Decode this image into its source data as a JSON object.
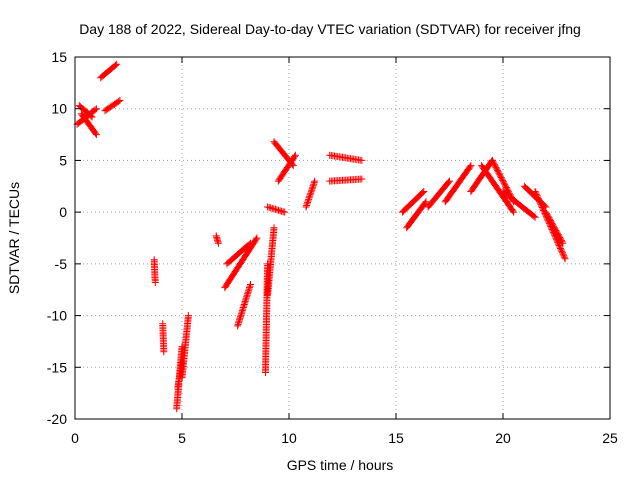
{
  "chart_data": {
    "type": "scatter",
    "title": "Day 188 of 2022, Sidereal Day-to-day VTEC variation (SDTVAR) for receiver jfng",
    "xlabel": "GPS time / hours",
    "ylabel": "SDTVAR / TECUs",
    "xlim": [
      0,
      25
    ],
    "ylim": [
      -20,
      15
    ],
    "xticks": [
      0,
      5,
      10,
      15,
      20,
      25
    ],
    "yticks": [
      -20,
      -15,
      -10,
      -5,
      0,
      5,
      10,
      15
    ],
    "grid": true,
    "marker": "+",
    "marker_color": "#ff0000",
    "series": [
      {
        "name": "sdtvar",
        "segments": [
          {
            "x0": 0.1,
            "x1": 1.0,
            "y0": 8.5,
            "y1": 10.0
          },
          {
            "x0": 0.3,
            "x1": 1.0,
            "y0": 9.5,
            "y1": 7.5
          },
          {
            "x0": 0.2,
            "x1": 0.8,
            "y0": 10.3,
            "y1": 9.2
          },
          {
            "x0": 1.2,
            "x1": 1.95,
            "y0": 13.0,
            "y1": 14.3
          },
          {
            "x0": 1.4,
            "x1": 2.1,
            "y0": 9.8,
            "y1": 10.8
          },
          {
            "x0": 3.7,
            "x1": 3.75,
            "y0": -4.6,
            "y1": -6.8
          },
          {
            "x0": 4.1,
            "x1": 4.15,
            "y0": -10.8,
            "y1": -13.5
          },
          {
            "x0": 4.75,
            "x1": 5.0,
            "y0": -19.0,
            "y1": -13.0
          },
          {
            "x0": 4.8,
            "x1": 5.0,
            "y0": -17.0,
            "y1": -14.5
          },
          {
            "x0": 5.0,
            "x1": 5.3,
            "y0": -16.0,
            "y1": -10.0
          },
          {
            "x0": 6.6,
            "x1": 6.7,
            "y0": -2.3,
            "y1": -3.0
          },
          {
            "x0": 7.0,
            "x1": 8.5,
            "y0": -7.3,
            "y1": -2.5
          },
          {
            "x0": 7.1,
            "x1": 8.2,
            "y0": -5.0,
            "y1": -3.0
          },
          {
            "x0": 7.6,
            "x1": 8.2,
            "y0": -11.0,
            "y1": -7.0
          },
          {
            "x0": 8.9,
            "x1": 9.0,
            "y0": -15.5,
            "y1": -5.0
          },
          {
            "x0": 9.0,
            "x1": 9.3,
            "y0": -8.0,
            "y1": -1.5
          },
          {
            "x0": 9.0,
            "x1": 9.8,
            "y0": 0.5,
            "y1": 0.0
          },
          {
            "x0": 9.3,
            "x1": 10.2,
            "y0": 6.8,
            "y1": 4.5
          },
          {
            "x0": 9.5,
            "x1": 10.3,
            "y0": 3.0,
            "y1": 5.5
          },
          {
            "x0": 10.8,
            "x1": 11.2,
            "y0": 0.5,
            "y1": 3.0
          },
          {
            "x0": 11.9,
            "x1": 13.4,
            "y0": 5.5,
            "y1": 5.0
          },
          {
            "x0": 11.9,
            "x1": 13.4,
            "y0": 3.0,
            "y1": 3.2
          },
          {
            "x0": 15.3,
            "x1": 16.3,
            "y0": 0.0,
            "y1": 2.0
          },
          {
            "x0": 15.5,
            "x1": 16.4,
            "y0": -1.5,
            "y1": 1.0
          },
          {
            "x0": 16.5,
            "x1": 17.5,
            "y0": 0.5,
            "y1": 3.0
          },
          {
            "x0": 17.3,
            "x1": 18.5,
            "y0": 1.0,
            "y1": 4.5
          },
          {
            "x0": 18.5,
            "x1": 19.5,
            "y0": 2.0,
            "y1": 5.0
          },
          {
            "x0": 19.0,
            "x1": 20.5,
            "y0": 4.5,
            "y1": 0.0
          },
          {
            "x0": 19.5,
            "x1": 20.5,
            "y0": 5.0,
            "y1": 1.0
          },
          {
            "x0": 20.0,
            "x1": 21.5,
            "y0": 2.0,
            "y1": -0.5
          },
          {
            "x0": 21.0,
            "x1": 22.0,
            "y0": 2.5,
            "y1": 0.5
          },
          {
            "x0": 21.5,
            "x1": 22.9,
            "y0": 2.0,
            "y1": -4.5
          },
          {
            "x0": 22.0,
            "x1": 22.8,
            "y0": 0.0,
            "y1": -3.0
          }
        ]
      }
    ]
  }
}
